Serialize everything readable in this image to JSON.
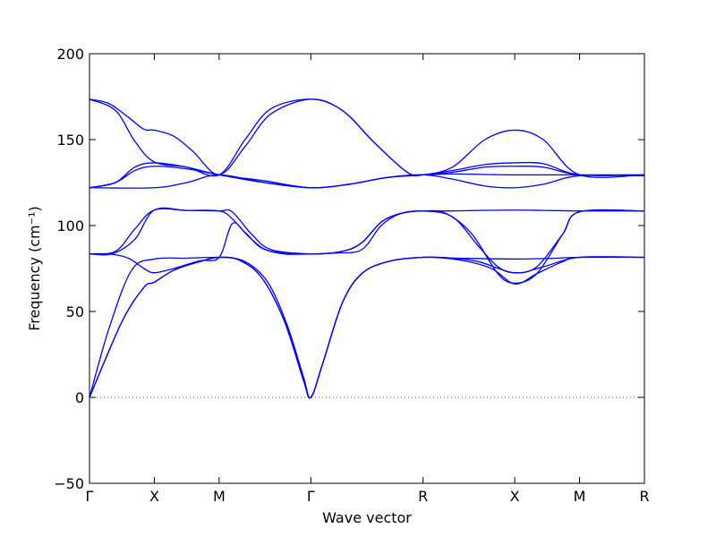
{
  "chart_data": {
    "type": "line",
    "xlabel": "Wave vector",
    "ylabel": "Frequency (cm⁻¹)",
    "ylim": [
      -50,
      200
    ],
    "yticks": [
      -50,
      0,
      50,
      100,
      150,
      200
    ],
    "x_ticks": [
      {
        "label": "Γ",
        "pos": 0
      },
      {
        "label": "X",
        "pos": 1
      },
      {
        "label": "M",
        "pos": 2
      },
      {
        "label": "Γ",
        "pos": 3.414
      },
      {
        "label": "R",
        "pos": 5.146
      },
      {
        "label": "X",
        "pos": 6.56
      },
      {
        "label": "M",
        "pos": 7.56
      },
      {
        "label": "R",
        "pos": 8.56
      }
    ],
    "xlim": [
      0,
      8.56
    ],
    "zero_line": {
      "y": 0,
      "style": "dotted"
    },
    "line_color": "#0000ff",
    "series": [
      {
        "values": [
          [
            0,
            0
          ],
          [
            0.5,
            44
          ],
          [
            0.84,
            64
          ],
          [
            1.0,
            67
          ],
          [
            1.3,
            74
          ],
          [
            1.7,
            79
          ],
          [
            2.0,
            81.5
          ],
          [
            2.3,
            80
          ],
          [
            2.65,
            70
          ],
          [
            3.0,
            45
          ],
          [
            3.3,
            10
          ],
          [
            3.414,
            0
          ],
          [
            3.6,
            20
          ],
          [
            3.9,
            55
          ],
          [
            4.2,
            72
          ],
          [
            4.6,
            79
          ],
          [
            5.146,
            81.5
          ],
          [
            5.7,
            80
          ],
          [
            6.2,
            75
          ],
          [
            6.56,
            66
          ],
          [
            6.9,
            72
          ],
          [
            7.3,
            79
          ],
          [
            7.56,
            81.5
          ],
          [
            8.56,
            81.5
          ]
        ]
      },
      {
        "values": [
          [
            0,
            0
          ],
          [
            0.5,
            44
          ],
          [
            0.84,
            64
          ],
          [
            1.0,
            67
          ],
          [
            1.3,
            74
          ],
          [
            1.7,
            79
          ],
          [
            2.0,
            81.5
          ],
          [
            2.4,
            79
          ],
          [
            2.75,
            67
          ],
          [
            3.05,
            42
          ],
          [
            3.3,
            12
          ],
          [
            3.414,
            0
          ],
          [
            3.6,
            20
          ],
          [
            3.9,
            55
          ],
          [
            4.2,
            72
          ],
          [
            4.6,
            79
          ],
          [
            5.146,
            81.5
          ],
          [
            5.7,
            81
          ],
          [
            6.56,
            80.5
          ],
          [
            7.2,
            81
          ],
          [
            7.56,
            81.5
          ],
          [
            8.56,
            81.5
          ]
        ]
      },
      {
        "values": [
          [
            0,
            0
          ],
          [
            0.3,
            40
          ],
          [
            0.65,
            74
          ],
          [
            1.0,
            80.5
          ],
          [
            1.5,
            81
          ],
          [
            2.0,
            81.5
          ],
          [
            2.3,
            80
          ],
          [
            2.65,
            70
          ],
          [
            3.0,
            45
          ],
          [
            3.3,
            10
          ],
          [
            3.414,
            0
          ],
          [
            3.6,
            20
          ],
          [
            3.9,
            55
          ],
          [
            4.2,
            72
          ],
          [
            4.6,
            79
          ],
          [
            5.146,
            81.5
          ],
          [
            5.6,
            81
          ],
          [
            6.0,
            79
          ],
          [
            6.56,
            72.5
          ],
          [
            7.0,
            76
          ],
          [
            7.56,
            81.5
          ],
          [
            8.56,
            81.5
          ]
        ]
      },
      {
        "values": [
          [
            0,
            83.5
          ],
          [
            0.3,
            83.5
          ],
          [
            0.6,
            81
          ],
          [
            0.84,
            75
          ],
          [
            1.0,
            72.5
          ],
          [
            1.3,
            75
          ],
          [
            1.7,
            79.5
          ],
          [
            2.0,
            81.5
          ],
          [
            2.2,
            101
          ],
          [
            2.4,
            96
          ],
          [
            2.65,
            87
          ],
          [
            3.0,
            83.5
          ],
          [
            3.414,
            83.5
          ],
          [
            3.8,
            84
          ],
          [
            4.2,
            86
          ],
          [
            4.5,
            100
          ],
          [
            4.8,
            107
          ],
          [
            5.146,
            108.5
          ],
          [
            5.6,
            108.5
          ],
          [
            6.0,
            108.8
          ],
          [
            6.56,
            109
          ],
          [
            7.0,
            108.8
          ],
          [
            7.56,
            108.5
          ],
          [
            8.56,
            108.5
          ]
        ]
      },
      {
        "values": [
          [
            0,
            83.5
          ],
          [
            0.4,
            85
          ],
          [
            0.7,
            98
          ],
          [
            1.0,
            109
          ],
          [
            1.5,
            108.8
          ],
          [
            2.0,
            108.5
          ],
          [
            2.2,
            104
          ],
          [
            2.5,
            92
          ],
          [
            2.8,
            85
          ],
          [
            3.414,
            83.5
          ],
          [
            3.9,
            85
          ],
          [
            4.2,
            90
          ],
          [
            4.5,
            102
          ],
          [
            4.8,
            107
          ],
          [
            5.146,
            108.5
          ],
          [
            5.6,
            105
          ],
          [
            6.0,
            88
          ],
          [
            6.3,
            76
          ],
          [
            6.56,
            72.5
          ],
          [
            6.9,
            76
          ],
          [
            7.3,
            95
          ],
          [
            7.56,
            108
          ],
          [
            8.56,
            108.5
          ]
        ]
      },
      {
        "values": [
          [
            0,
            83.5
          ],
          [
            0.35,
            83.5
          ],
          [
            0.7,
            92
          ],
          [
            1.0,
            109
          ],
          [
            1.5,
            108.8
          ],
          [
            2.0,
            108.5
          ],
          [
            2.2,
            108
          ],
          [
            2.5,
            95
          ],
          [
            2.8,
            86
          ],
          [
            3.414,
            83.5
          ],
          [
            3.9,
            85
          ],
          [
            4.2,
            90
          ],
          [
            4.5,
            102
          ],
          [
            4.8,
            107
          ],
          [
            5.146,
            108.5
          ],
          [
            5.5,
            107
          ],
          [
            5.9,
            95
          ],
          [
            6.3,
            72
          ],
          [
            6.56,
            66.5
          ],
          [
            6.9,
            72
          ],
          [
            7.3,
            95
          ],
          [
            7.56,
            108
          ],
          [
            8.56,
            108.5
          ]
        ]
      },
      {
        "values": [
          [
            0,
            122
          ],
          [
            0.4,
            125
          ],
          [
            0.7,
            132
          ],
          [
            1.0,
            134.5
          ],
          [
            1.5,
            133
          ],
          [
            2.0,
            129.5
          ],
          [
            2.7,
            125
          ],
          [
            3.414,
            122
          ],
          [
            4.0,
            124
          ],
          [
            4.6,
            128
          ],
          [
            5.146,
            129.5
          ],
          [
            5.6,
            131
          ],
          [
            6.1,
            134
          ],
          [
            6.56,
            134.5
          ],
          [
            7.0,
            134
          ],
          [
            7.56,
            129.5
          ],
          [
            8.56,
            129.5
          ]
        ]
      },
      {
        "values": [
          [
            0,
            122
          ],
          [
            1.0,
            122
          ],
          [
            1.5,
            125
          ],
          [
            2.0,
            129.5
          ],
          [
            2.7,
            125
          ],
          [
            3.414,
            122
          ],
          [
            4.0,
            124
          ],
          [
            4.6,
            128
          ],
          [
            5.146,
            129.5
          ],
          [
            5.6,
            127
          ],
          [
            6.1,
            123
          ],
          [
            6.56,
            122
          ],
          [
            7.0,
            124
          ],
          [
            7.56,
            129
          ],
          [
            8.56,
            129
          ]
        ]
      },
      {
        "values": [
          [
            0,
            122
          ],
          [
            0.4,
            125
          ],
          [
            0.7,
            134
          ],
          [
            1.0,
            136.5
          ],
          [
            1.5,
            134
          ],
          [
            2.0,
            129.5
          ],
          [
            2.7,
            126
          ],
          [
            3.414,
            122
          ],
          [
            4.0,
            124
          ],
          [
            4.6,
            128
          ],
          [
            5.146,
            129.5
          ],
          [
            5.6,
            132
          ],
          [
            6.1,
            135.5
          ],
          [
            6.56,
            136.5
          ],
          [
            7.0,
            136
          ],
          [
            7.56,
            129.5
          ],
          [
            8.56,
            129.5
          ]
        ]
      },
      {
        "values": [
          [
            0,
            173.5
          ],
          [
            0.3,
            171
          ],
          [
            0.6,
            163
          ],
          [
            0.84,
            156
          ],
          [
            1.0,
            155.5
          ],
          [
            1.3,
            152
          ],
          [
            1.6,
            143
          ],
          [
            2.0,
            129.5
          ],
          [
            2.4,
            146
          ],
          [
            2.8,
            165
          ],
          [
            3.414,
            173.5
          ],
          [
            3.9,
            167
          ],
          [
            4.4,
            148
          ],
          [
            4.9,
            131
          ],
          [
            5.146,
            129.5
          ],
          [
            5.6,
            134
          ],
          [
            6.1,
            150
          ],
          [
            6.56,
            155.5
          ],
          [
            7.0,
            150
          ],
          [
            7.56,
            129.5
          ],
          [
            8.56,
            129.5
          ]
        ]
      },
      {
        "values": [
          [
            0,
            173.5
          ],
          [
            0.4,
            167
          ],
          [
            0.7,
            149
          ],
          [
            1.0,
            137
          ],
          [
            1.5,
            134
          ],
          [
            2.0,
            129.5
          ],
          [
            2.4,
            150
          ],
          [
            2.8,
            168
          ],
          [
            3.414,
            173.5
          ],
          [
            3.9,
            167
          ],
          [
            4.4,
            148
          ],
          [
            4.9,
            131
          ],
          [
            5.146,
            129.5
          ],
          [
            5.6,
            130
          ],
          [
            6.56,
            129.5
          ],
          [
            7.56,
            129.5
          ],
          [
            8.56,
            129.5
          ]
        ]
      }
    ]
  }
}
